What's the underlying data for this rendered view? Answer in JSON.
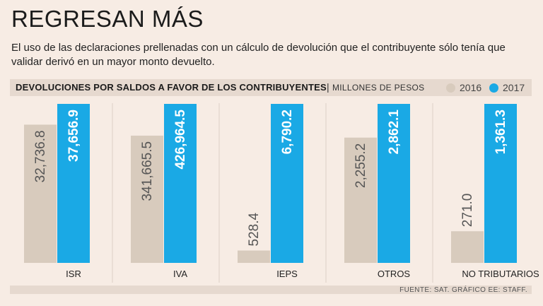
{
  "header": {
    "title": "REGRESAN MÁS",
    "subtitle": "El uso de las declaraciones prellenadas con un cálculo de devolución que el contribuyente sólo tenía que validar derivó en un mayor monto devuelto."
  },
  "band": {
    "title": "DEVOLUCIONES POR SALDOS A FAVOR DE LOS CONTRIBUYENTES",
    "separator": "|",
    "unit": "MILLONES DE PESOS"
  },
  "legend": [
    {
      "label": "2016",
      "color": "#d8cbbd"
    },
    {
      "label": "2017",
      "color": "#1aa9e5"
    }
  ],
  "footer": {
    "source": "FUENTE: SAT.  GRÁFICO EE: STAFF."
  },
  "chart_data": {
    "type": "bar",
    "categories": [
      "ISR",
      "IVA",
      "IEPS",
      "OTROS",
      "NO TRIBUTARIOS"
    ],
    "series": [
      {
        "name": "2016",
        "color": "#d8cbbd",
        "values": [
          32736.8,
          341665.5,
          528.4,
          2255.2,
          271.0
        ],
        "labels": [
          "32,736.8",
          "341,665.5",
          "528.4",
          "2,255.2",
          "271.0"
        ]
      },
      {
        "name": "2017",
        "color": "#1aa9e5",
        "values": [
          37656.9,
          426964.5,
          6790.2,
          2862.1,
          1361.3
        ],
        "labels": [
          "37,656.9",
          "426,964.5",
          "6,790.2",
          "2,862.1",
          "1,361.3"
        ]
      }
    ],
    "scale": "independent-per-panel",
    "title": "DEVOLUCIONES POR SALDOS A FAVOR DE LOS CONTRIBUYENTES",
    "ylabel": "MILLONES DE PESOS",
    "grid": false,
    "legend_position": "top-right"
  }
}
